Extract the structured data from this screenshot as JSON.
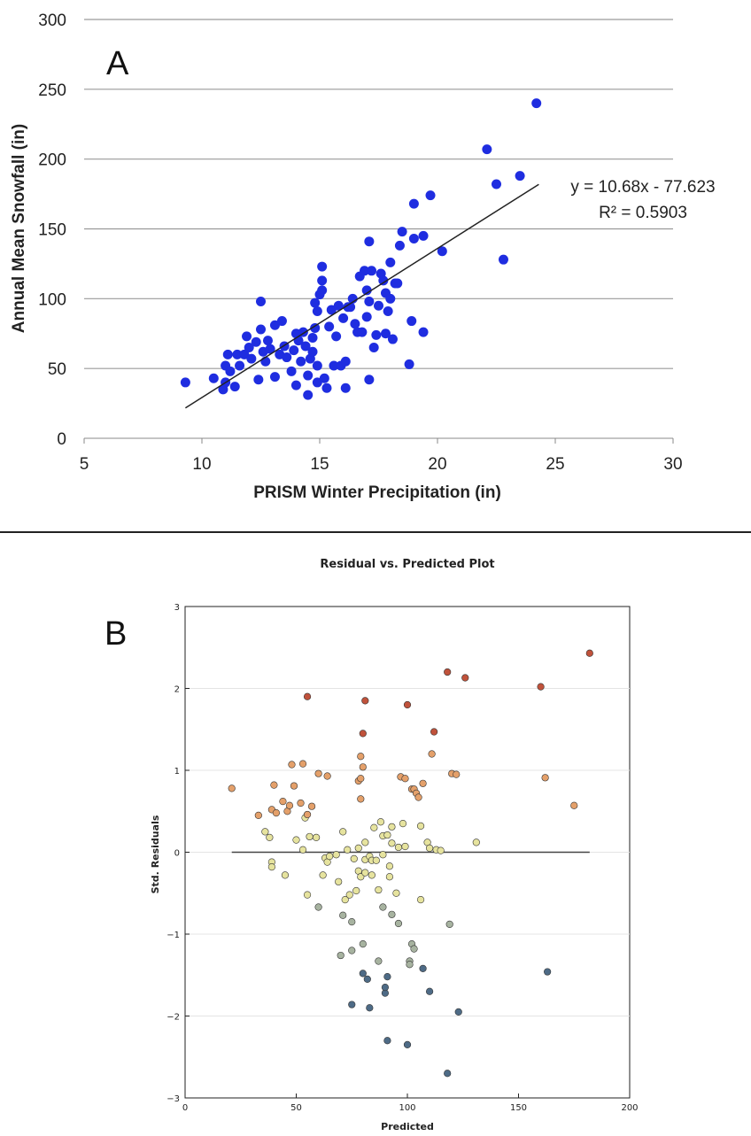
{
  "chart_data": [
    {
      "type": "scatter",
      "panel_label": "A",
      "title": "",
      "xlabel": "PRISM Winter Precipitation (in)",
      "ylabel": "Annual Mean Snowfall (in)",
      "xlim": [
        5,
        30
      ],
      "ylim": [
        0,
        300
      ],
      "xticks": [
        "5",
        "10",
        "15",
        "20",
        "25",
        "30"
      ],
      "yticks": [
        "0",
        "50",
        "100",
        "150",
        "200",
        "250",
        "300"
      ],
      "grid": "horizontal",
      "point_color": "#1f2de0",
      "trendline": {
        "slope": 10.68,
        "intercept": -77.623,
        "x_range": [
          9.3,
          24.3
        ],
        "equation_label": "y = 10.68x - 77.623",
        "r2_label": "R² = 0.5903"
      },
      "points": [
        [
          9.3,
          40
        ],
        [
          10.5,
          43
        ],
        [
          10.9,
          35
        ],
        [
          11.0,
          40
        ],
        [
          11.0,
          52
        ],
        [
          11.1,
          60
        ],
        [
          11.2,
          48
        ],
        [
          11.4,
          37
        ],
        [
          11.5,
          60
        ],
        [
          11.6,
          52
        ],
        [
          11.8,
          60
        ],
        [
          11.9,
          73
        ],
        [
          12.0,
          65
        ],
        [
          12.1,
          57
        ],
        [
          12.3,
          69
        ],
        [
          12.4,
          42
        ],
        [
          12.5,
          98
        ],
        [
          12.5,
          78
        ],
        [
          12.6,
          62
        ],
        [
          12.7,
          55
        ],
        [
          12.8,
          70
        ],
        [
          12.9,
          64
        ],
        [
          13.1,
          44
        ],
        [
          13.1,
          81
        ],
        [
          13.3,
          60
        ],
        [
          13.4,
          84
        ],
        [
          13.5,
          66
        ],
        [
          13.6,
          58
        ],
        [
          13.8,
          48
        ],
        [
          13.9,
          63
        ],
        [
          14.0,
          38
        ],
        [
          14.0,
          75
        ],
        [
          14.1,
          70
        ],
        [
          14.2,
          55
        ],
        [
          14.3,
          76
        ],
        [
          14.4,
          66
        ],
        [
          14.5,
          45
        ],
        [
          14.5,
          31
        ],
        [
          14.6,
          57
        ],
        [
          14.7,
          62
        ],
        [
          14.7,
          72
        ],
        [
          14.8,
          97
        ],
        [
          14.8,
          79
        ],
        [
          14.9,
          91
        ],
        [
          14.9,
          40
        ],
        [
          14.9,
          52
        ],
        [
          15.0,
          103
        ],
        [
          15.1,
          106
        ],
        [
          15.1,
          113
        ],
        [
          15.1,
          123
        ],
        [
          15.2,
          43
        ],
        [
          15.3,
          36
        ],
        [
          15.4,
          80
        ],
        [
          15.5,
          92
        ],
        [
          15.6,
          52
        ],
        [
          15.7,
          73
        ],
        [
          15.8,
          95
        ],
        [
          15.9,
          52
        ],
        [
          16.0,
          86
        ],
        [
          16.1,
          36
        ],
        [
          16.1,
          55
        ],
        [
          16.2,
          94
        ],
        [
          16.3,
          94
        ],
        [
          16.4,
          100
        ],
        [
          16.5,
          82
        ],
        [
          16.6,
          76
        ],
        [
          16.7,
          116
        ],
        [
          16.8,
          76
        ],
        [
          16.9,
          120
        ],
        [
          17.0,
          87
        ],
        [
          17.0,
          106
        ],
        [
          17.1,
          98
        ],
        [
          17.1,
          141
        ],
        [
          17.1,
          42
        ],
        [
          17.2,
          120
        ],
        [
          17.3,
          65
        ],
        [
          17.4,
          74
        ],
        [
          17.5,
          95
        ],
        [
          17.6,
          118
        ],
        [
          17.7,
          113
        ],
        [
          17.8,
          75
        ],
        [
          17.8,
          104
        ],
        [
          17.9,
          91
        ],
        [
          18.0,
          126
        ],
        [
          18.0,
          100
        ],
        [
          18.1,
          71
        ],
        [
          18.2,
          111
        ],
        [
          18.3,
          111
        ],
        [
          18.4,
          138
        ],
        [
          18.5,
          148
        ],
        [
          18.8,
          53
        ],
        [
          18.9,
          84
        ],
        [
          19.0,
          143
        ],
        [
          19.0,
          168
        ],
        [
          19.4,
          145
        ],
        [
          19.4,
          76
        ],
        [
          19.7,
          174
        ],
        [
          20.2,
          134
        ],
        [
          22.1,
          207
        ],
        [
          22.5,
          182
        ],
        [
          22.8,
          128
        ],
        [
          23.5,
          188
        ],
        [
          24.2,
          240
        ]
      ]
    },
    {
      "type": "scatter",
      "panel_label": "B",
      "title": "Residual vs. Predicted Plot",
      "xlabel": "Predicted",
      "ylabel": "Std. Residuals",
      "xlim": [
        0,
        200
      ],
      "ylim": [
        -3,
        3
      ],
      "xticks": [
        "0",
        "50",
        "100",
        "150",
        "200"
      ],
      "yticks": [
        "−3",
        "−2",
        "−1",
        "0",
        "1",
        "2",
        "3"
      ],
      "grid": "horizontal",
      "zero_line_x_range": [
        21,
        182
      ],
      "color_scale": {
        "high": "#c0523b",
        "mid_high": "#e4a06a",
        "mid": "#e6e39e",
        "mid_low": "#a7b3a0",
        "low": "#4e6b86"
      },
      "points": [
        [
          21,
          0.78
        ],
        [
          33,
          0.45
        ],
        [
          36,
          0.25
        ],
        [
          38,
          0.18
        ],
        [
          39,
          0.52
        ],
        [
          39,
          -0.12
        ],
        [
          39,
          -0.18
        ],
        [
          40,
          0.82
        ],
        [
          41,
          0.48
        ],
        [
          44,
          0.62
        ],
        [
          45,
          -0.28
        ],
        [
          46,
          0.5
        ],
        [
          47,
          0.57
        ],
        [
          48,
          1.07
        ],
        [
          49,
          0.81
        ],
        [
          50,
          0.15
        ],
        [
          52,
          0.6
        ],
        [
          53,
          0.03
        ],
        [
          53,
          1.08
        ],
        [
          54,
          0.42
        ],
        [
          55,
          0.46
        ],
        [
          55,
          1.9
        ],
        [
          55,
          -0.52
        ],
        [
          56,
          0.19
        ],
        [
          57,
          0.56
        ],
        [
          59,
          0.18
        ],
        [
          60,
          -0.67
        ],
        [
          60,
          0.96
        ],
        [
          62,
          -0.28
        ],
        [
          63,
          -0.07
        ],
        [
          64,
          0.93
        ],
        [
          64,
          -0.12
        ],
        [
          65,
          -0.05
        ],
        [
          68,
          -0.03
        ],
        [
          69,
          -0.36
        ],
        [
          70,
          -1.26
        ],
        [
          71,
          -0.77
        ],
        [
          71,
          0.25
        ],
        [
          72,
          -0.58
        ],
        [
          73,
          0.03
        ],
        [
          74,
          -0.52
        ],
        [
          75,
          -1.2
        ],
        [
          75,
          -0.85
        ],
        [
          75,
          -1.86
        ],
        [
          76,
          -0.08
        ],
        [
          77,
          -0.47
        ],
        [
          78,
          -0.23
        ],
        [
          78,
          0.05
        ],
        [
          78,
          0.87
        ],
        [
          79,
          -0.3
        ],
        [
          79,
          0.65
        ],
        [
          79,
          0.9
        ],
        [
          79,
          1.17
        ],
        [
          80,
          -1.48
        ],
        [
          80,
          -1.12
        ],
        [
          80,
          1.04
        ],
        [
          80,
          1.45
        ],
        [
          81,
          -0.25
        ],
        [
          81,
          -0.09
        ],
        [
          81,
          0.12
        ],
        [
          81,
          1.85
        ],
        [
          82,
          -1.55
        ],
        [
          83,
          -1.9
        ],
        [
          83,
          -0.05
        ],
        [
          84,
          -0.28
        ],
        [
          84,
          -0.1
        ],
        [
          85,
          0.3
        ],
        [
          86,
          -0.1
        ],
        [
          87,
          -1.33
        ],
        [
          87,
          -0.46
        ],
        [
          88,
          0.37
        ],
        [
          89,
          0.2
        ],
        [
          89,
          -0.67
        ],
        [
          89,
          -0.03
        ],
        [
          90,
          -1.72
        ],
        [
          90,
          -1.65
        ],
        [
          91,
          -1.52
        ],
        [
          91,
          -2.3
        ],
        [
          91,
          0.21
        ],
        [
          92,
          -0.3
        ],
        [
          92,
          -0.17
        ],
        [
          93,
          0.31
        ],
        [
          93,
          -0.76
        ],
        [
          93,
          0.11
        ],
        [
          95,
          -0.5
        ],
        [
          96,
          0.06
        ],
        [
          96,
          -0.87
        ],
        [
          97,
          0.92
        ],
        [
          98,
          0.35
        ],
        [
          99,
          0.9
        ],
        [
          99,
          0.07
        ],
        [
          100,
          -2.35
        ],
        [
          100,
          1.8
        ],
        [
          101,
          -1.33
        ],
        [
          101,
          -1.37
        ],
        [
          102,
          0.77
        ],
        [
          102,
          -1.12
        ],
        [
          103,
          0.77
        ],
        [
          103,
          -1.18
        ],
        [
          104,
          0.72
        ],
        [
          105,
          0.67
        ],
        [
          106,
          0.32
        ],
        [
          106,
          -0.58
        ],
        [
          107,
          -1.42
        ],
        [
          107,
          0.84
        ],
        [
          109,
          0.12
        ],
        [
          110,
          0.05
        ],
        [
          110,
          -1.7
        ],
        [
          111,
          1.2
        ],
        [
          112,
          1.47
        ],
        [
          113,
          0.03
        ],
        [
          115,
          0.02
        ],
        [
          118,
          -2.7
        ],
        [
          118,
          2.2
        ],
        [
          119,
          -0.88
        ],
        [
          120,
          0.96
        ],
        [
          122,
          0.95
        ],
        [
          123,
          -1.95
        ],
        [
          126,
          2.13
        ],
        [
          131,
          0.12
        ],
        [
          160,
          2.02
        ],
        [
          162,
          0.91
        ],
        [
          163,
          -1.46
        ],
        [
          175,
          0.57
        ],
        [
          182,
          2.43
        ]
      ]
    }
  ]
}
